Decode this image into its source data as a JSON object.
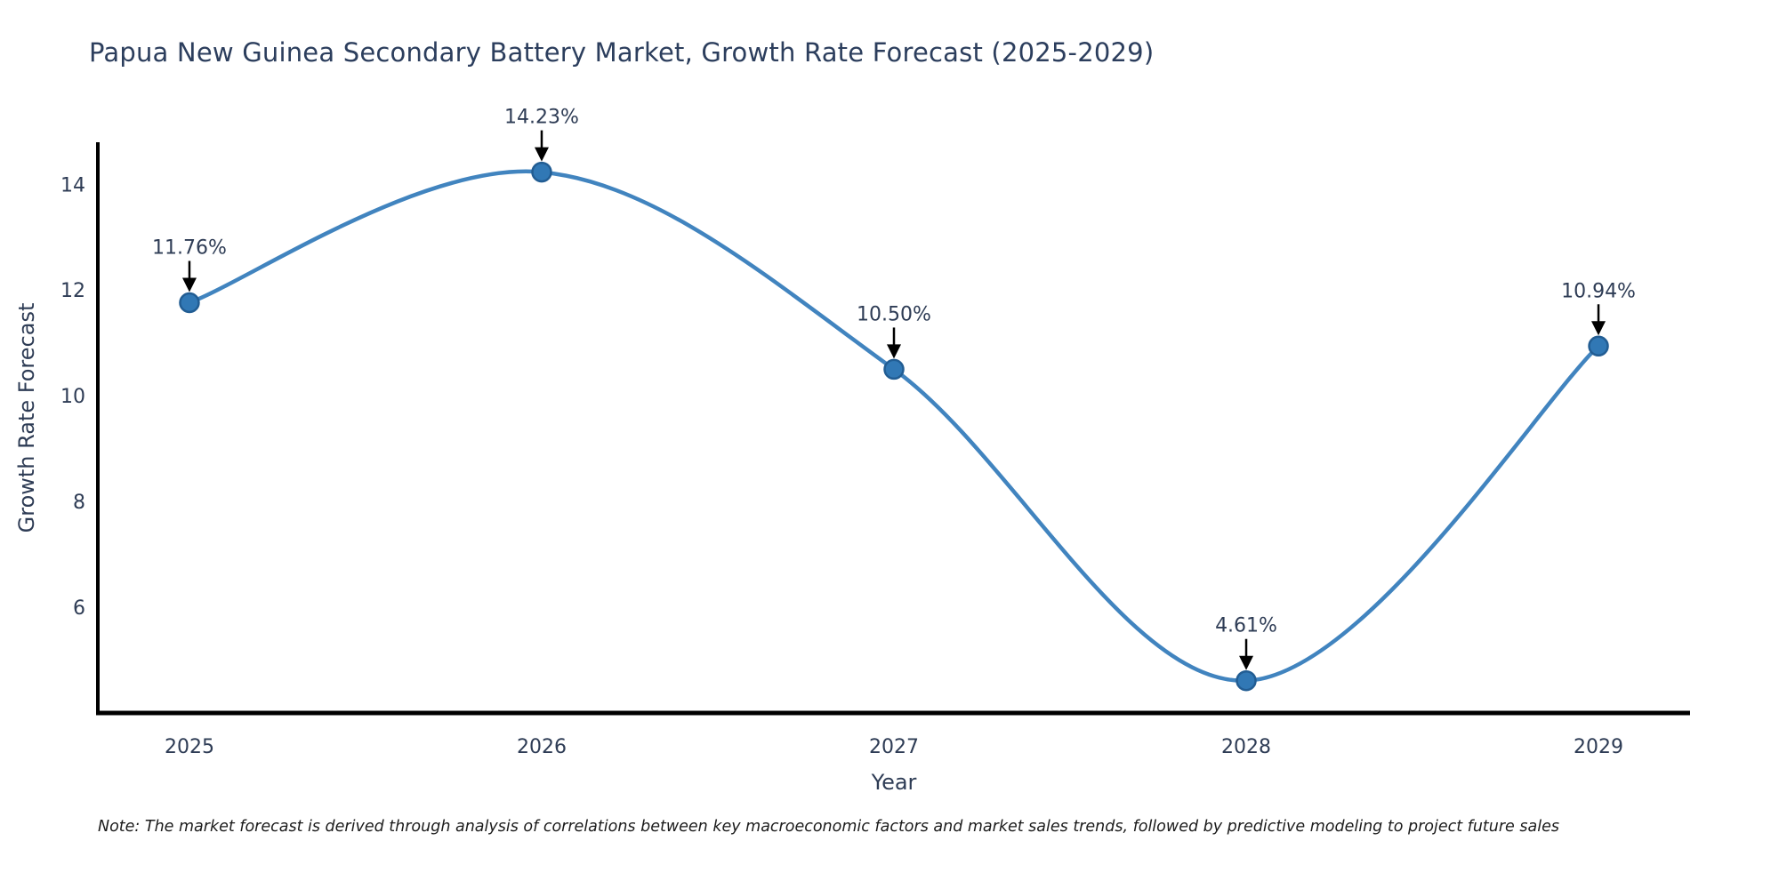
{
  "chart_data": {
    "type": "line",
    "title": "Papua New Guinea Secondary Battery Market, Growth Rate Forecast (2025-2029)",
    "xlabel": "Year",
    "ylabel": "Growth Rate Forecast",
    "categories": [
      2025,
      2026,
      2027,
      2028,
      2029
    ],
    "values": [
      11.76,
      14.23,
      10.5,
      4.61,
      10.94
    ],
    "point_labels": [
      "11.76%",
      "14.23%",
      "10.50%",
      "4.61%",
      "10.94%"
    ],
    "yticks": [
      6,
      8,
      10,
      12,
      14
    ],
    "ylim": [
      4.0,
      14.795
    ],
    "xlim": [
      2024.74,
      2029.26
    ],
    "grid": false,
    "legend_position": "none",
    "smooth": true,
    "line_color": "#4184bf",
    "marker_fill": "#3178b5",
    "marker_edge": "#225d93",
    "axis_color": "#000000",
    "text_color": "#2e3c55",
    "annotation_arrow_color": "#000000",
    "note": "Note: The market forecast is derived through analysis of correlations between key macroeconomic factors and market sales trends, followed by predictive modeling to project future sales"
  }
}
